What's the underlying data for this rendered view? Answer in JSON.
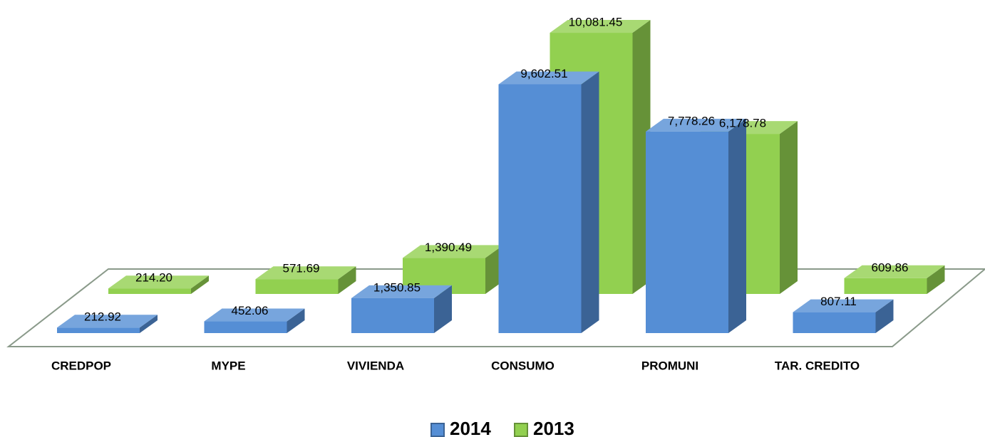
{
  "chart_data": {
    "type": "bar3d",
    "categories": [
      "CREDPOP",
      "MYPE",
      "VIVIENDA",
      "CONSUMO",
      "PROMUNI",
      "TAR. CREDITO"
    ],
    "series": [
      {
        "name": "2014",
        "color": "#558ed5",
        "values": [
          212.92,
          452.06,
          1350.85,
          9602.51,
          7778.26,
          807.11
        ],
        "value_labels": [
          "212.92",
          "452.06",
          "1,350.85",
          "9,602.51",
          "7,778.26",
          "807.11"
        ]
      },
      {
        "name": "2013",
        "color": "#92d050",
        "values": [
          214.2,
          571.69,
          1390.49,
          10081.45,
          6178.78,
          609.86
        ],
        "value_labels": [
          "214.20",
          "571.69",
          "1,390.49",
          "10,081.45",
          "6,178.78",
          "609.86"
        ]
      }
    ],
    "legend": "bottom"
  }
}
